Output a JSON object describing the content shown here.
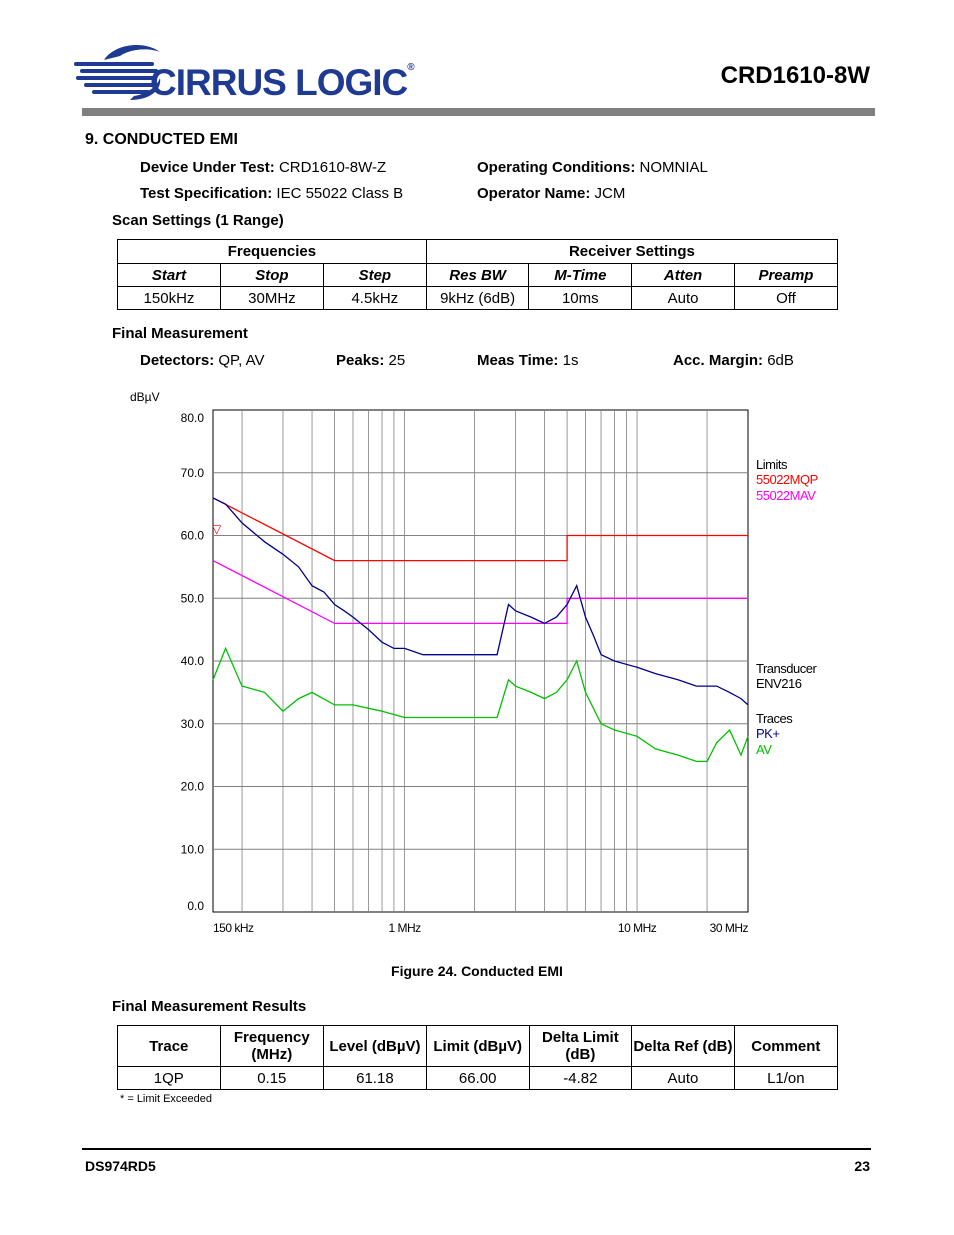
{
  "header": {
    "logo_text": "CIRRUS LOGIC",
    "logo_mark": "®",
    "doc_title": "CRD1610-8W"
  },
  "section": {
    "title": "9.  CONDUCTED EMI",
    "dut_label": "Device Under Test:",
    "dut_value": "CRD1610-8W-Z",
    "op_cond_label": "Operating Conditions:",
    "op_cond_value": "NOMNIAL",
    "spec_label": "Test Specification:",
    "spec_value": "IEC 55022 Class B",
    "operator_label": "Operator Name:",
    "operator_value": "JCM",
    "scan_title": "Scan Settings (1 Range)"
  },
  "scan_table": {
    "group_headers": [
      "Frequencies",
      "Receiver Settings"
    ],
    "headers": [
      "Start",
      "Stop",
      "Step",
      "Res BW",
      "M-Time",
      "Atten",
      "Preamp"
    ],
    "row": [
      "150kHz",
      "30MHz",
      "4.5kHz",
      "9kHz (6dB)",
      "10ms",
      "Auto",
      "Off"
    ]
  },
  "final_measurement": {
    "title": "Final Measurement",
    "detectors_label": "Detectors:",
    "detectors_value": "QP, AV",
    "peaks_label": "Peaks:",
    "peaks_value": "25",
    "meas_time_label": "Meas Time:",
    "meas_time_value": "1s",
    "acc_margin_label": "Acc. Margin:",
    "acc_margin_value": "6dB"
  },
  "chart_data": {
    "type": "line",
    "ylabel": "dBµV",
    "ylim": [
      0,
      80
    ],
    "yticks": [
      "80.0",
      "70.0",
      "60.0",
      "50.0",
      "40.0",
      "30.0",
      "20.0",
      "10.0",
      "0.0"
    ],
    "x_scale": "log",
    "xlim_mhz": [
      0.15,
      30
    ],
    "xtick_labels": [
      "150 kHz",
      "1 MHz",
      "10 MHz",
      "30 MHz"
    ],
    "xtick_values_mhz": [
      0.15,
      1,
      10,
      30
    ],
    "grid": true,
    "legend": {
      "limits_title": "Limits",
      "limit_names": [
        "55022MQP",
        "55022MAV"
      ],
      "transducer_title": "Transducer",
      "transducer_name": "ENV216",
      "traces_title": "Traces",
      "trace_names": [
        "PK+",
        "AV"
      ]
    },
    "colors": {
      "mqp": "#ff0000",
      "mav": "#ff00ff",
      "pk": "#00008b",
      "av": "#00c000",
      "marker": "#ff0000",
      "grid": "#808080"
    },
    "series": [
      {
        "name": "55022MQP",
        "x": [
          0.15,
          0.5,
          0.5,
          5,
          5,
          30
        ],
        "y": [
          66,
          56,
          56,
          56,
          60,
          60
        ]
      },
      {
        "name": "55022MAV",
        "x": [
          0.15,
          0.5,
          0.5,
          5,
          5,
          30
        ],
        "y": [
          56,
          46,
          46,
          46,
          50,
          50
        ]
      },
      {
        "name": "PK+",
        "x": [
          0.15,
          0.17,
          0.2,
          0.25,
          0.3,
          0.35,
          0.4,
          0.45,
          0.5,
          0.55,
          0.6,
          0.7,
          0.8,
          0.9,
          1.0,
          1.2,
          1.5,
          1.8,
          2.0,
          2.2,
          2.5,
          2.8,
          3.0,
          3.5,
          4.0,
          4.5,
          5.0,
          5.5,
          6.0,
          6.5,
          7.0,
          8.0,
          10,
          12,
          15,
          18,
          20,
          22,
          25,
          28,
          30
        ],
        "y": [
          66,
          65,
          62,
          59,
          57,
          55,
          52,
          51,
          49,
          48,
          47,
          45,
          43,
          42,
          42,
          41,
          41,
          41,
          41,
          41,
          41,
          49,
          48,
          47,
          46,
          47,
          49,
          52,
          47,
          44,
          41,
          40,
          39,
          38,
          37,
          36,
          36,
          36,
          35,
          34,
          33
        ]
      },
      {
        "name": "AV",
        "x": [
          0.15,
          0.17,
          0.2,
          0.25,
          0.3,
          0.35,
          0.4,
          0.5,
          0.6,
          0.8,
          1.0,
          1.2,
          1.5,
          1.8,
          2.0,
          2.2,
          2.5,
          2.8,
          3.0,
          3.5,
          4.0,
          4.5,
          5.0,
          5.5,
          6.0,
          7.0,
          8.0,
          10,
          12,
          15,
          18,
          20,
          22,
          25,
          28,
          30
        ],
        "y": [
          37,
          42,
          36,
          35,
          32,
          34,
          35,
          33,
          33,
          32,
          31,
          31,
          31,
          31,
          31,
          31,
          31,
          37,
          36,
          35,
          34,
          35,
          37,
          40,
          35,
          30,
          29,
          28,
          26,
          25,
          24,
          24,
          27,
          29,
          25,
          28
        ]
      }
    ],
    "marker": {
      "x": 0.15,
      "y": 61.18,
      "symbol": "▽"
    }
  },
  "figure": {
    "caption": "Figure 24.  Conducted EMI"
  },
  "results": {
    "title": "Final Measurement Results",
    "headers": [
      "Trace",
      "Frequency (MHz)",
      "Level (dBµV)",
      "Limit (dBµV)",
      "Delta Limit (dB)",
      "Delta Ref (dB)",
      "Comment"
    ],
    "rows": [
      [
        "1QP",
        "0.15",
        "61.18",
        "66.00",
        "-4.82",
        "Auto",
        "L1/on"
      ]
    ],
    "note": "* = Limit Exceeded"
  },
  "footer": {
    "doc_id": "DS974RD5",
    "page": "23"
  }
}
